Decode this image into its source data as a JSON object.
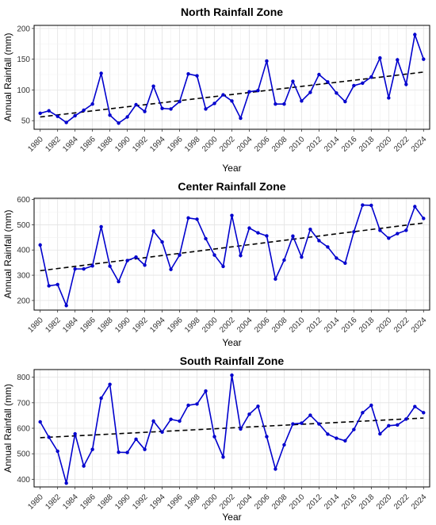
{
  "chart_data": [
    {
      "type": "line",
      "title": "North Rainfall Zone",
      "xlabel": "Year",
      "ylabel": "Annual Rainfall (mm)",
      "xlim": [
        1979.3,
        2024.7
      ],
      "ylim": [
        36,
        205
      ],
      "y_ticks": [
        50,
        100,
        150,
        200
      ],
      "x_ticks": [
        1980,
        1982,
        1984,
        1986,
        1988,
        1990,
        1992,
        1994,
        1996,
        1998,
        2000,
        2002,
        2004,
        2006,
        2008,
        2010,
        2012,
        2014,
        2016,
        2018,
        2020,
        2022,
        2024
      ],
      "grid": true,
      "x": [
        1980,
        1981,
        1982,
        1983,
        1984,
        1985,
        1986,
        1987,
        1988,
        1989,
        1990,
        1991,
        1992,
        1993,
        1994,
        1995,
        1996,
        1997,
        1998,
        1999,
        2000,
        2001,
        2002,
        2003,
        2004,
        2005,
        2006,
        2007,
        2008,
        2009,
        2010,
        2011,
        2012,
        2013,
        2014,
        2015,
        2016,
        2017,
        2018,
        2019,
        2020,
        2021,
        2022,
        2023,
        2024
      ],
      "series": [
        {
          "values": [
            62,
            66,
            57,
            47,
            58,
            67,
            77,
            127,
            59,
            46,
            56,
            76,
            65,
            106,
            70,
            69,
            81,
            126,
            123,
            69,
            78,
            92,
            82,
            54,
            97,
            99,
            147,
            77,
            77,
            114,
            82,
            96,
            125,
            113,
            95,
            81,
            107,
            111,
            121,
            152,
            87,
            149,
            109,
            190,
            150
          ],
          "color": "#0000cd"
        }
      ],
      "trend": {
        "style": "dashed",
        "color": "#000000",
        "start": [
          1980,
          56
        ],
        "end": [
          2024,
          129
        ]
      }
    },
    {
      "type": "line",
      "title": "Center Rainfall Zone",
      "xlabel": "Year",
      "ylabel": "Annual Rainfall (mm)",
      "xlim": [
        1979.3,
        2024.7
      ],
      "ylim": [
        162,
        605
      ],
      "y_ticks": [
        200,
        300,
        400,
        500,
        600
      ],
      "x_ticks": [
        1980,
        1982,
        1984,
        1986,
        1988,
        1990,
        1992,
        1994,
        1996,
        1998,
        2000,
        2002,
        2004,
        2006,
        2008,
        2010,
        2012,
        2014,
        2016,
        2018,
        2020,
        2022,
        2024
      ],
      "grid": true,
      "x": [
        1980,
        1981,
        1982,
        1983,
        1984,
        1985,
        1986,
        1987,
        1988,
        1989,
        1990,
        1991,
        1992,
        1993,
        1994,
        1995,
        1996,
        1997,
        1998,
        1999,
        2000,
        2001,
        2002,
        2003,
        2004,
        2005,
        2006,
        2007,
        2008,
        2009,
        2010,
        2011,
        2012,
        2013,
        2014,
        2015,
        2016,
        2017,
        2018,
        2019,
        2020,
        2021,
        2022,
        2023,
        2024
      ],
      "series": [
        {
          "values": [
            420,
            258,
            263,
            180,
            325,
            325,
            337,
            492,
            336,
            275,
            358,
            372,
            340,
            475,
            432,
            323,
            380,
            527,
            522,
            445,
            380,
            335,
            537,
            378,
            487,
            468,
            456,
            285,
            360,
            455,
            372,
            482,
            437,
            412,
            368,
            348,
            472,
            578,
            577,
            478,
            447,
            465,
            478,
            572,
            525
          ],
          "color": "#0000cd"
        }
      ],
      "trend": {
        "style": "dashed",
        "color": "#000000",
        "start": [
          1980,
          318
        ],
        "end": [
          2024,
          507
        ]
      }
    },
    {
      "type": "line",
      "title": "South Rainfall Zone",
      "xlabel": "Year",
      "ylabel": "Annual Rainfall (mm)",
      "xlim": [
        1979.3,
        2024.7
      ],
      "ylim": [
        370,
        830
      ],
      "y_ticks": [
        400,
        500,
        600,
        700,
        800
      ],
      "x_ticks": [
        1980,
        1982,
        1984,
        1986,
        1988,
        1990,
        1992,
        1994,
        1996,
        1998,
        2000,
        2002,
        2004,
        2006,
        2008,
        2010,
        2012,
        2014,
        2016,
        2018,
        2020,
        2022,
        2024
      ],
      "grid": true,
      "x": [
        1980,
        1981,
        1982,
        1983,
        1984,
        1985,
        1986,
        1987,
        1988,
        1989,
        1990,
        1991,
        1992,
        1993,
        1994,
        1995,
        1996,
        1997,
        1998,
        1999,
        2000,
        2001,
        2002,
        2003,
        2004,
        2005,
        2006,
        2007,
        2008,
        2009,
        2010,
        2011,
        2012,
        2013,
        2014,
        2015,
        2016,
        2017,
        2018,
        2019,
        2020,
        2021,
        2022,
        2023,
        2024
      ],
      "series": [
        {
          "values": [
            625,
            565,
            510,
            385,
            578,
            452,
            517,
            718,
            772,
            506,
            505,
            557,
            517,
            628,
            585,
            635,
            628,
            690,
            695,
            746,
            567,
            487,
            808,
            597,
            655,
            686,
            567,
            440,
            535,
            617,
            620,
            651,
            617,
            577,
            561,
            551,
            595,
            661,
            690,
            578,
            610,
            613,
            636,
            685,
            661
          ],
          "color": "#0000cd"
        }
      ],
      "trend": {
        "style": "dashed",
        "color": "#000000",
        "start": [
          1980,
          563
        ],
        "end": [
          2024,
          640
        ]
      }
    }
  ]
}
